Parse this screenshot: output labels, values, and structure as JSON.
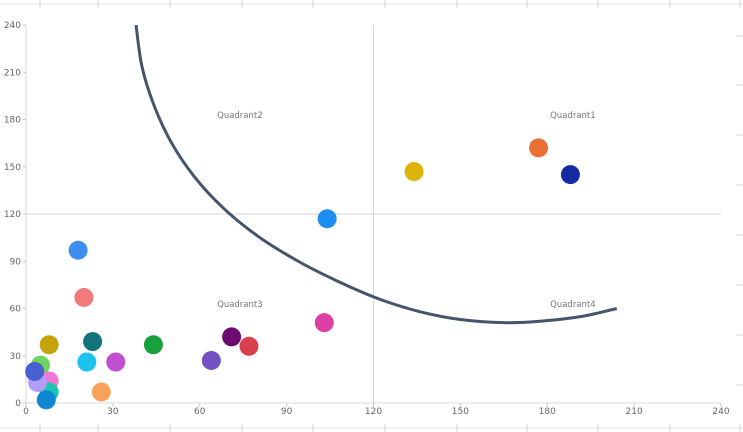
{
  "chart_data": {
    "type": "scatter",
    "title": "",
    "xlabel": "",
    "ylabel": "",
    "xlim": [
      0,
      240
    ],
    "ylim": [
      0,
      240
    ],
    "x_ticks": [
      0,
      30,
      60,
      90,
      120,
      150,
      180,
      210,
      240
    ],
    "y_ticks": [
      0,
      30,
      60,
      90,
      120,
      150,
      180,
      210,
      240
    ],
    "grid": false,
    "reference_lines": {
      "x": 120,
      "y": 120,
      "color": "#d6d6d6"
    },
    "quadrant_labels": [
      {
        "text": "Quadrant1",
        "x": 181,
        "y": 181
      },
      {
        "text": "Quadrant2",
        "x": 66,
        "y": 181
      },
      {
        "text": "Quadrant3",
        "x": 66,
        "y": 61
      },
      {
        "text": "Quadrant4",
        "x": 181,
        "y": 61
      }
    ],
    "curve": {
      "color": "#44546a",
      "points": [
        [
          38,
          240
        ],
        [
          40,
          214
        ],
        [
          44,
          190
        ],
        [
          50,
          166
        ],
        [
          58,
          144
        ],
        [
          68,
          124
        ],
        [
          80,
          106
        ],
        [
          94,
          90
        ],
        [
          108,
          77
        ],
        [
          122,
          66
        ],
        [
          136,
          58
        ],
        [
          150,
          53
        ],
        [
          165,
          51
        ],
        [
          178,
          52
        ],
        [
          192,
          55
        ],
        [
          204,
          60
        ]
      ]
    },
    "points": [
      {
        "x": 177,
        "y": 162,
        "color": "#ea7134"
      },
      {
        "x": 188,
        "y": 145,
        "color": "#1529a1"
      },
      {
        "x": 134,
        "y": 147,
        "color": "#dcb40c"
      },
      {
        "x": 104,
        "y": 117,
        "color": "#1a8cf2"
      },
      {
        "x": 18,
        "y": 97,
        "color": "#3d8ef0"
      },
      {
        "x": 20,
        "y": 67,
        "color": "#f47a7a"
      },
      {
        "x": 103,
        "y": 51,
        "color": "#de3fa4"
      },
      {
        "x": 71,
        "y": 42,
        "color": "#6d0a72"
      },
      {
        "x": 77,
        "y": 36,
        "color": "#d9404d"
      },
      {
        "x": 64,
        "y": 27,
        "color": "#7252c2"
      },
      {
        "x": 44,
        "y": 37,
        "color": "#17a03c"
      },
      {
        "x": 23,
        "y": 39,
        "color": "#12737a"
      },
      {
        "x": 8,
        "y": 37,
        "color": "#c7a20d"
      },
      {
        "x": 31,
        "y": 26,
        "color": "#c04fd1"
      },
      {
        "x": 21,
        "y": 26,
        "color": "#1cc2ee"
      },
      {
        "x": 26,
        "y": 7,
        "color": "#f7a25b"
      },
      {
        "x": 5,
        "y": 24,
        "color": "#6bd45b"
      },
      {
        "x": 8,
        "y": 14,
        "color": "#ef77d6"
      },
      {
        "x": 8,
        "y": 7,
        "color": "#19c7b0"
      },
      {
        "x": 4,
        "y": 13,
        "color": "#b59cf7"
      },
      {
        "x": 3,
        "y": 20,
        "color": "#4a5fcf"
      },
      {
        "x": 7,
        "y": 2,
        "color": "#0f86d4"
      }
    ]
  }
}
